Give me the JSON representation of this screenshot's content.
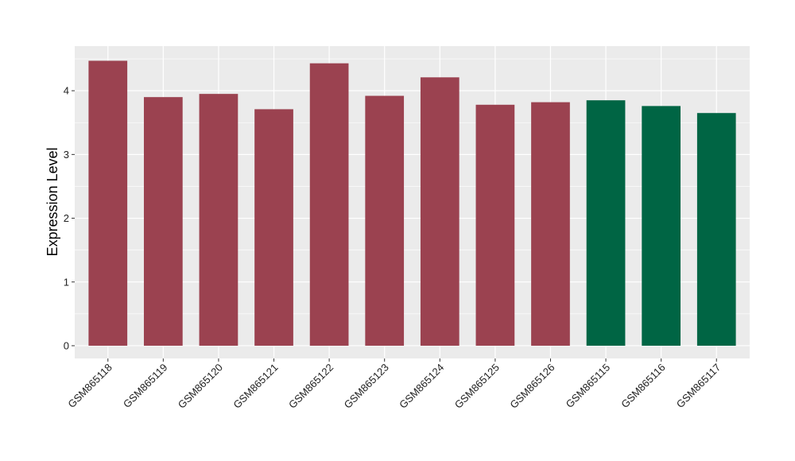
{
  "chart_data": {
    "type": "bar",
    "title": "",
    "xlabel": "",
    "ylabel": "Expression Level",
    "categories": [
      "GSM865118",
      "GSM865119",
      "GSM865120",
      "GSM865121",
      "GSM865122",
      "GSM865123",
      "GSM865124",
      "GSM865125",
      "GSM865126",
      "GSM865115",
      "GSM865116",
      "GSM865117"
    ],
    "values": [
      4.47,
      3.9,
      3.95,
      3.71,
      4.43,
      3.92,
      4.21,
      3.78,
      3.82,
      3.85,
      3.76,
      3.65
    ],
    "bar_colors": [
      "#9B4250",
      "#9B4250",
      "#9B4250",
      "#9B4250",
      "#9B4250",
      "#9B4250",
      "#9B4250",
      "#9B4250",
      "#9B4250",
      "#006544",
      "#006544",
      "#006544"
    ],
    "ylim": [
      -0.2,
      4.7
    ],
    "yticks": [
      0,
      1,
      2,
      3,
      4
    ],
    "grid": true,
    "legend": "none",
    "panel_background": "#EBEBEB",
    "grid_color": "#FFFFFF"
  }
}
